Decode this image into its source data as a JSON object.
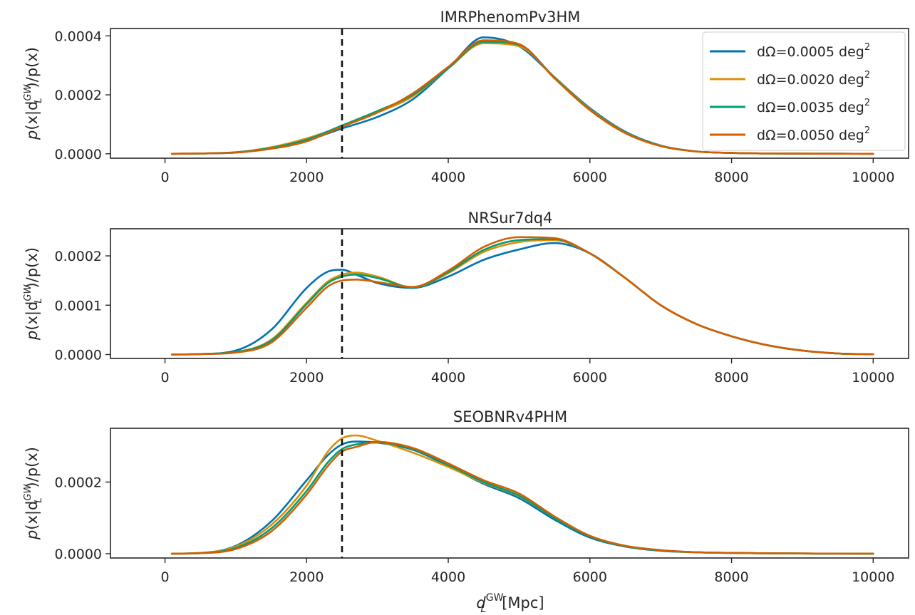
{
  "chart_data": [
    {
      "type": "line",
      "title": "IMRPhenomPv3HM",
      "xlabel": "",
      "ylabel": "p(x|d_L^GW)/p(x)",
      "xlim": [
        -770,
        10500
      ],
      "ylim": [
        -1.5e-05,
        0.000425
      ],
      "xticks": [
        0,
        2000,
        4000,
        6000,
        8000,
        10000
      ],
      "xtick_labels": [
        "0",
        "2000",
        "4000",
        "6000",
        "8000",
        "10000"
      ],
      "yticks": [
        0,
        0.0002,
        0.0004
      ],
      "ytick_labels": [
        "0.0000",
        "0.0002",
        "0.0004"
      ],
      "vline_x": 2500,
      "grid": false,
      "legend_position": "top-right",
      "x": [
        100,
        500,
        1000,
        1500,
        2000,
        2500,
        3000,
        3500,
        4000,
        4500,
        5000,
        5500,
        6000,
        6500,
        7000,
        7500,
        8000,
        8500,
        9000,
        9500,
        10000
      ],
      "series": [
        {
          "name": "dΩ=0.0005 deg²",
          "color": "#0173b2",
          "values": [
            0,
            1e-06,
            4e-06,
            1.8e-05,
            4.5e-05,
            8.6e-05,
            0.000125,
            0.000185,
            0.00029,
            0.000395,
            0.000365,
            0.00026,
            0.000155,
            7.5e-05,
            2.8e-05,
            8e-06,
            3e-06,
            1e-06,
            5e-07,
            2e-07,
            0
          ]
        },
        {
          "name": "dΩ=0.0020 deg²",
          "color": "#de8f05",
          "values": [
            0,
            1e-06,
            5e-06,
            2.2e-05,
            5.2e-05,
            9.3e-05,
            0.00014,
            0.000195,
            0.00029,
            0.000375,
            0.000365,
            0.00026,
            0.000152,
            7.3e-05,
            2.7e-05,
            8e-06,
            3e-06,
            1e-06,
            5e-07,
            2e-07,
            0
          ]
        },
        {
          "name": "dΩ=0.0035 deg²",
          "color": "#029e73",
          "values": [
            0,
            1e-06,
            5e-06,
            2e-05,
            4.8e-05,
            9.6e-05,
            0.000145,
            0.0002,
            0.00029,
            0.00038,
            0.00037,
            0.000258,
            0.00015,
            7.2e-05,
            2.7e-05,
            8e-06,
            3e-06,
            1e-06,
            5e-07,
            2e-07,
            0
          ]
        },
        {
          "name": "dΩ=0.0050 deg²",
          "color": "#d55e00",
          "values": [
            0,
            1e-06,
            4e-06,
            1.7e-05,
            4.2e-05,
            9.2e-05,
            0.00014,
            0.000205,
            0.000295,
            0.000385,
            0.000372,
            0.000256,
            0.000148,
            7e-05,
            2.6e-05,
            8e-06,
            3e-06,
            1e-06,
            5e-07,
            2e-07,
            0
          ]
        }
      ]
    },
    {
      "type": "line",
      "title": "NRSur7dq4",
      "xlabel": "",
      "ylabel": "p(x|d_L^GW)/p(x)",
      "xlim": [
        -770,
        10500
      ],
      "ylim": [
        -8e-06,
        0.000255
      ],
      "xticks": [
        0,
        2000,
        4000,
        6000,
        8000,
        10000
      ],
      "xtick_labels": [
        "0",
        "2000",
        "4000",
        "6000",
        "8000",
        "10000"
      ],
      "yticks": [
        0,
        0.0001,
        0.0002
      ],
      "ytick_labels": [
        "0.0000",
        "0.0001",
        "0.0002"
      ],
      "vline_x": 2500,
      "grid": false,
      "x": [
        100,
        500,
        1000,
        1500,
        2000,
        2300,
        2500,
        2700,
        3000,
        3500,
        4000,
        4500,
        5000,
        5500,
        6000,
        6500,
        7000,
        7500,
        8000,
        8500,
        9000,
        9500,
        10000
      ],
      "series": [
        {
          "name": "dΩ=0.0005 deg²",
          "color": "#0173b2",
          "values": [
            0,
            1e-06,
            8e-06,
            5e-05,
            0.000135,
            0.000168,
            0.000172,
            0.000162,
            0.000145,
            0.000135,
            0.000158,
            0.000192,
            0.000213,
            0.000226,
            0.000205,
            0.000155,
            0.0001,
            6.2e-05,
            3.7e-05,
            1.9e-05,
            8e-06,
            2e-06,
            5e-07
          ]
        },
        {
          "name": "dΩ=0.0020 deg²",
          "color": "#de8f05",
          "values": [
            0,
            1e-06,
            5e-06,
            3e-05,
            0.000105,
            0.000148,
            0.000162,
            0.000166,
            0.000158,
            0.000136,
            0.000165,
            0.000208,
            0.000228,
            0.000232,
            0.000205,
            0.000155,
            0.0001,
            6.2e-05,
            3.7e-05,
            1.9e-05,
            8e-06,
            2e-06,
            5e-07
          ]
        },
        {
          "name": "dΩ=0.0035 deg²",
          "color": "#029e73",
          "values": [
            0,
            1e-06,
            5e-06,
            2.8e-05,
            0.000102,
            0.000145,
            0.000158,
            0.000162,
            0.000155,
            0.000136,
            0.000167,
            0.000212,
            0.000232,
            0.000234,
            0.000205,
            0.000155,
            0.0001,
            6.2e-05,
            3.7e-05,
            1.9e-05,
            8e-06,
            2e-06,
            5e-07
          ]
        },
        {
          "name": "dΩ=0.0050 deg²",
          "color": "#d55e00",
          "values": [
            0,
            8e-07,
            4e-06,
            2.4e-05,
            9.5e-05,
            0.000138,
            0.00015,
            0.000152,
            0.000147,
            0.000137,
            0.00017,
            0.000218,
            0.000238,
            0.000236,
            0.000205,
            0.000155,
            0.0001,
            6.2e-05,
            3.7e-05,
            1.9e-05,
            8e-06,
            2e-06,
            5e-07
          ]
        }
      ]
    },
    {
      "type": "line",
      "title": "SEOBNRv4PHM",
      "xlabel": "d_L^GW[Mpc]",
      "ylabel": "p(x|d_L^GW)/p(x)",
      "xlim": [
        -770,
        10500
      ],
      "ylim": [
        -1.2e-05,
        0.00035
      ],
      "xticks": [
        0,
        2000,
        4000,
        6000,
        8000,
        10000
      ],
      "xtick_labels": [
        "0",
        "2000",
        "4000",
        "6000",
        "8000",
        "10000"
      ],
      "yticks": [
        0,
        0.0002
      ],
      "ytick_labels": [
        "0.0000",
        "0.0002"
      ],
      "vline_x": 2500,
      "grid": false,
      "x": [
        100,
        500,
        1000,
        1500,
        2000,
        2300,
        2500,
        2700,
        3000,
        3500,
        4000,
        4500,
        5000,
        5500,
        6000,
        6500,
        7000,
        7500,
        8000,
        8500,
        9000,
        9500,
        10000
      ],
      "series": [
        {
          "name": "dΩ=0.0005 deg²",
          "color": "#0173b2",
          "values": [
            0,
            2e-06,
            2.2e-05,
            9e-05,
            0.000205,
            0.000275,
            0.000305,
            0.000313,
            0.00031,
            0.00029,
            0.000245,
            0.000195,
            0.000155,
            9.5e-05,
            4.5e-05,
            2e-05,
            8e-06,
            4e-06,
            2e-06,
            1e-06,
            5e-07,
            2e-07,
            0
          ]
        },
        {
          "name": "dΩ=0.0020 deg²",
          "color": "#de8f05",
          "values": [
            0,
            2e-06,
            2e-05,
            8e-05,
            0.00019,
            0.000285,
            0.000322,
            0.00033,
            0.000315,
            0.000282,
            0.000242,
            0.000198,
            0.00016,
            0.0001,
            4.8e-05,
            2.1e-05,
            9e-06,
            4e-06,
            2e-06,
            1e-06,
            5e-07,
            2e-07,
            0
          ]
        },
        {
          "name": "dΩ=0.0035 deg²",
          "color": "#029e73",
          "values": [
            0,
            1.5e-06,
            1.6e-05,
            7e-05,
            0.000175,
            0.000255,
            0.000292,
            0.000305,
            0.00031,
            0.000292,
            0.000248,
            0.0002,
            0.000162,
            0.0001,
            4.8e-05,
            2.1e-05,
            9e-06,
            4e-06,
            2e-06,
            1e-06,
            5e-07,
            2e-07,
            0
          ]
        },
        {
          "name": "dΩ=0.0050 deg²",
          "color": "#d55e00",
          "values": [
            0,
            1.2e-06,
            1.3e-05,
            6.2e-05,
            0.000165,
            0.000245,
            0.000285,
            0.000298,
            0.000312,
            0.000295,
            0.000252,
            0.000205,
            0.000168,
            0.000104,
            5e-05,
            2.2e-05,
            1e-05,
            4e-06,
            2e-06,
            1e-06,
            5e-07,
            2e-07,
            0
          ]
        }
      ]
    }
  ],
  "legend": {
    "entries": [
      {
        "label": "dΩ=0.0005 deg",
        "sup": "2",
        "color": "#0173b2"
      },
      {
        "label": "dΩ=0.0020 deg",
        "sup": "2",
        "color": "#de8f05"
      },
      {
        "label": "dΩ=0.0035 deg",
        "sup": "2",
        "color": "#029e73"
      },
      {
        "label": "dΩ=0.0050 deg",
        "sup": "2",
        "color": "#d55e00"
      }
    ]
  },
  "labels": {
    "ylabel_prefix": "p",
    "ylabel_inner": "(x|d",
    "ylabel_sub": "L",
    "ylabel_sup": "GW",
    "ylabel_suffix": ")/p(x)",
    "xlabel_d": "d",
    "xlabel_sub": "L",
    "xlabel_sup": "GW",
    "xlabel_unit": "[Mpc]"
  }
}
